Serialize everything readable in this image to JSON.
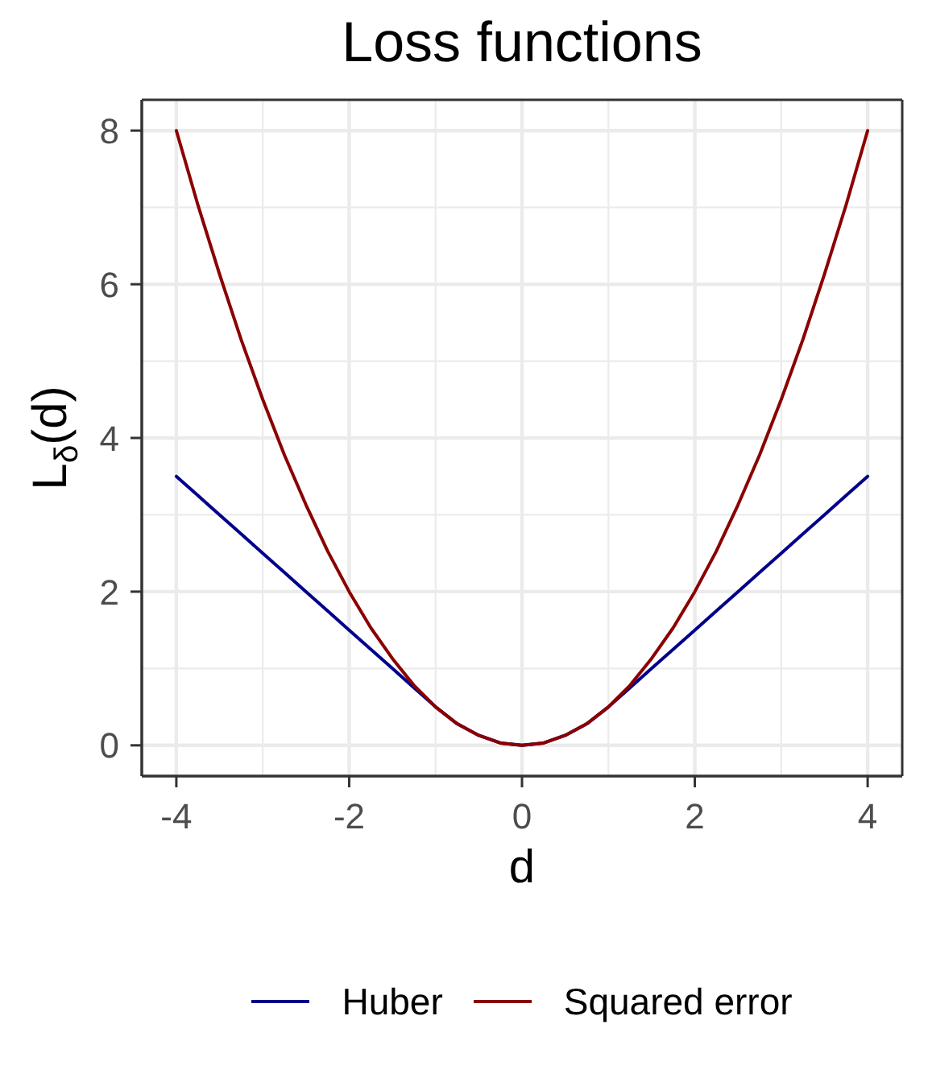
{
  "chart_data": {
    "type": "line",
    "title": "Loss functions",
    "xlabel": "d",
    "ylabel": "L$_{δ}$(d)",
    "x": [
      -4,
      -3.75,
      -3.5,
      -3.25,
      -3,
      -2.75,
      -2.5,
      -2.25,
      -2,
      -1.75,
      -1.5,
      -1.25,
      -1,
      -0.75,
      -0.5,
      -0.25,
      0,
      0.25,
      0.5,
      0.75,
      1,
      1.25,
      1.5,
      1.75,
      2,
      2.25,
      2.5,
      2.75,
      3,
      3.25,
      3.5,
      3.75,
      4
    ],
    "series": [
      {
        "name": "Huber",
        "color": "#00008b",
        "values": [
          3.5,
          3.25,
          3,
          2.75,
          2.5,
          2.25,
          2,
          1.75,
          1.5,
          1.25,
          1,
          0.75,
          0.5,
          0.28,
          0.13,
          0.03,
          0,
          0.03,
          0.13,
          0.28,
          0.5,
          0.75,
          1,
          1.25,
          1.5,
          1.75,
          2,
          2.25,
          2.5,
          2.75,
          3,
          3.25,
          3.5
        ]
      },
      {
        "name": "Squared error",
        "color": "#8b0000",
        "values": [
          8,
          7.03,
          6.13,
          5.28,
          4.5,
          3.78,
          3.13,
          2.53,
          2,
          1.53,
          1.13,
          0.78,
          0.5,
          0.28,
          0.13,
          0.03,
          0,
          0.03,
          0.13,
          0.28,
          0.5,
          0.78,
          1.13,
          1.53,
          2,
          2.53,
          3.13,
          3.78,
          4.5,
          5.28,
          6.13,
          7.03,
          8
        ]
      }
    ],
    "xlim": [
      -4.4,
      4.4
    ],
    "xticks": [
      -4,
      -2,
      0,
      2,
      4
    ],
    "ylim": [
      -0.4,
      8.4
    ],
    "yticks": [
      0,
      2,
      4,
      6,
      8
    ],
    "grid": true,
    "legend": "bottom",
    "marker": "none",
    "line_style": "solid"
  }
}
